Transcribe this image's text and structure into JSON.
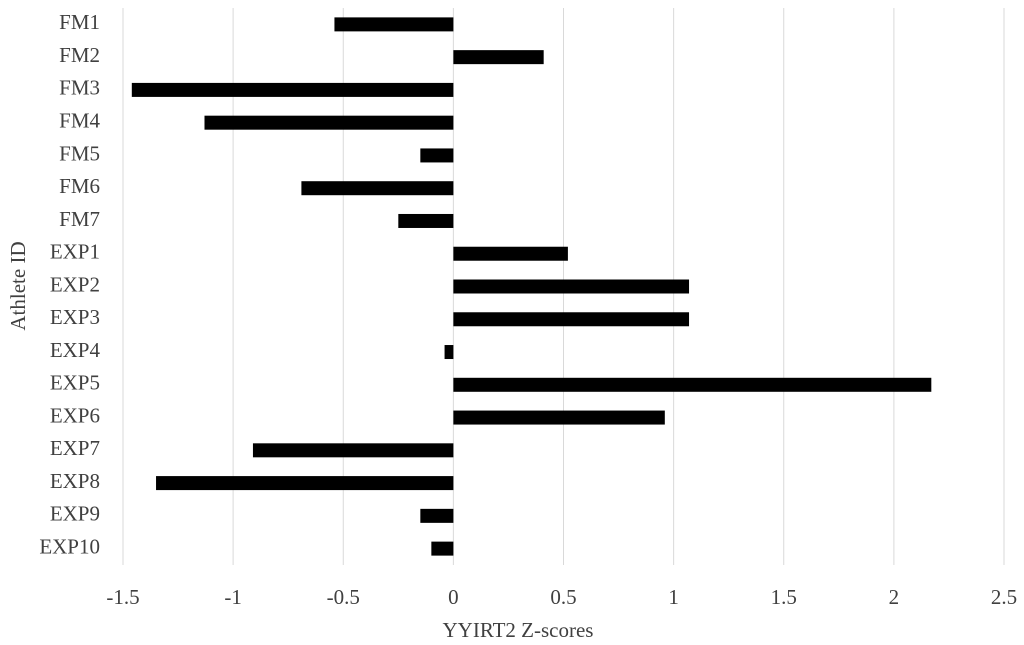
{
  "chart_data": {
    "type": "barh",
    "y_label": "Athlete ID",
    "x_label": "YYIRT2 Z-scores",
    "categories": [
      "FM1",
      "FM2",
      "FM3",
      "FM4",
      "FM5",
      "FM6",
      "FM7",
      "EXP1",
      "EXP2",
      "EXP3",
      "EXP4",
      "EXP5",
      "EXP6",
      "EXP7",
      "EXP8",
      "EXP9",
      "EXP10"
    ],
    "values": [
      -0.54,
      0.41,
      -1.46,
      -1.13,
      -0.15,
      -0.69,
      -0.25,
      0.52,
      1.07,
      1.07,
      -0.04,
      2.17,
      0.96,
      -0.91,
      -1.35,
      -0.15,
      -0.1
    ],
    "color": "#000000",
    "xlim": [
      -1.5,
      2.5
    ],
    "xticks": [
      -1.5,
      -1,
      -0.5,
      0,
      0.5,
      1,
      1.5,
      2,
      2.5
    ],
    "grid": true
  }
}
